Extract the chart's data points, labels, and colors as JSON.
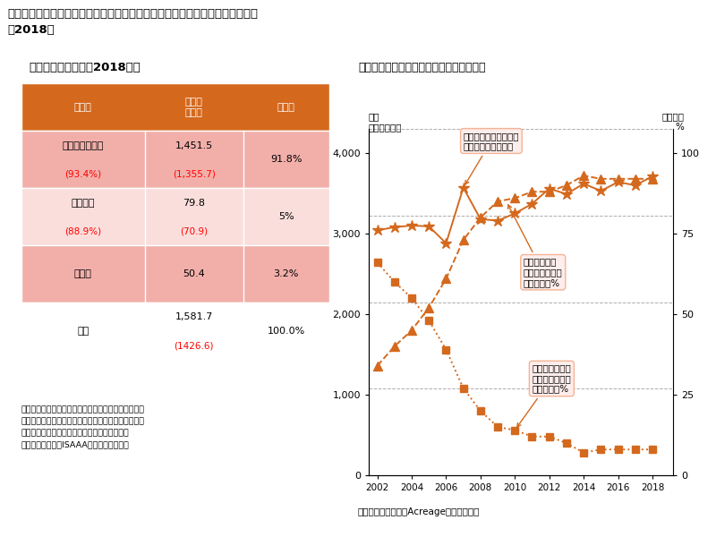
{
  "title_line1": "日本のトウモロコシの主要な輸入相手先と最大輸出国における栽培状況の推移",
  "title_line2": "（2018）",
  "left_subtitle": "日本への輸入状況（2018年）",
  "right_subtitle": "最大輸出国・米国における栽培状況の推移",
  "col_headers": [
    "生産国",
    "輸入量\n万トン",
    "シェア"
  ],
  "row0_col0_main": "アメリカ合衆国",
  "row0_col0_red": "(93.4%)",
  "row0_col1_main": "1,451.5",
  "row0_col1_red": "(1,355.7)",
  "row0_col2": "91.8%",
  "row1_col0_main": "ブラジル",
  "row1_col0_red": "(88.9%)",
  "row1_col1_main": "79.8",
  "row1_col1_red": "(70.9)",
  "row1_col2": "5%",
  "row2_col0": "その他",
  "row2_col1": "50.4",
  "row2_col2": "3.2%",
  "row3_col0": "合計",
  "row3_col1_main": "1,581.7",
  "row3_col1_red": "(1426.6)",
  "row3_col2": "100.0%",
  "footnote_line1": "赤字は前年の各生産国でのトウモロコシの全作付面積",
  "footnote_line2": "に対する遺伝子組換えトウモロコシの作付面積比率お",
  "footnote_line3": "よび遺伝子組換えトウモロコシの推定輸入量。",
  "footnote_line4": "財務省貿易統計、ISAAA報告書より作成。",
  "source_note": "（アメリカ農務省「Acreage」より作成）",
  "ann1_text": "トウモロコシの全作付\n面積、万ヘクタール",
  "ann2_text": "遺伝子組換え\nトウモロコシの\n作付比率、%",
  "ann3_text": "非遺伝子組換え\nトウモロコシの\n作付比率、%",
  "ylabel_left_line1": "面積",
  "ylabel_left_line2": "万ヘクタール",
  "ylabel_right_line1": "作付比率",
  "ylabel_right_line2": "%",
  "years": [
    2002,
    2003,
    2004,
    2005,
    2006,
    2007,
    2008,
    2009,
    2010,
    2011,
    2012,
    2013,
    2014,
    2015,
    2016,
    2017,
    2018
  ],
  "total_area": [
    3040,
    3080,
    3100,
    3090,
    2880,
    3570,
    3180,
    3160,
    3250,
    3370,
    3560,
    3490,
    3620,
    3530,
    3640,
    3600,
    3710
  ],
  "gmo_pct": [
    34,
    40,
    45,
    52,
    61,
    73,
    80,
    85,
    86,
    88,
    88,
    90,
    93,
    92,
    92,
    92,
    92
  ],
  "non_gmo_pct": [
    66,
    60,
    55,
    48,
    39,
    27,
    20,
    15,
    14,
    12,
    12,
    10,
    7,
    8,
    8,
    8,
    8
  ],
  "color_orange": "#D4691E",
  "color_header_bg": "#D4691E",
  "row_bg_odd": "#F2AFAA",
  "row_bg_even": "#FADEDC",
  "row_bg_last": "#FFFFFF"
}
